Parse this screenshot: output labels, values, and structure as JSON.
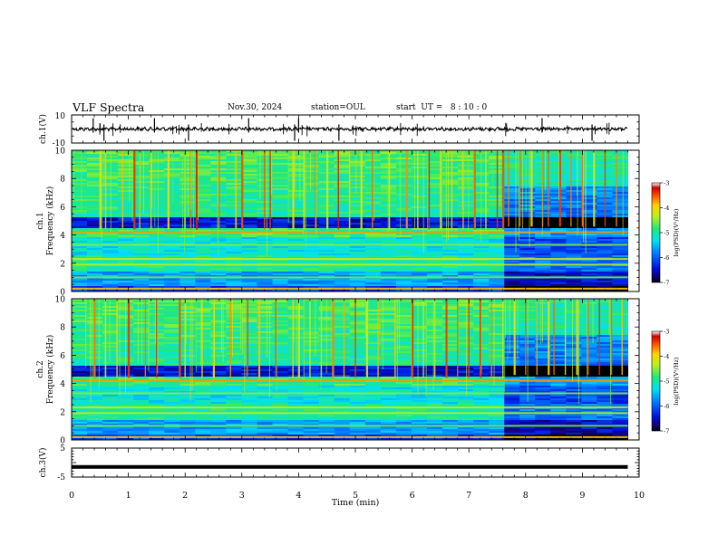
{
  "header": {
    "title": "VLF Spectra",
    "date": "Nov.30, 2024",
    "station": "station=OUL",
    "start": "start  UT =   8 : 10 : 0"
  },
  "chart_data": [
    {
      "type": "line",
      "panel": "ch1-waveform",
      "ylabel": "ch.1(V)",
      "ylim": [
        -10,
        10
      ],
      "yticks": [
        "10",
        "-10"
      ],
      "xlim": [
        0,
        10
      ],
      "baseline": 0,
      "noise_amplitude": 1,
      "spikes_min": [
        0.38,
        0.57,
        1.46,
        2.06,
        3.12,
        3.93,
        4.0,
        4.71,
        8.29,
        9.17
      ],
      "color": "#000000"
    },
    {
      "type": "heatmap",
      "panel": "ch1-spectrogram",
      "ylabel": "ch.1\nFrequency (kHz)",
      "ylim": [
        0,
        10
      ],
      "yticks": [
        "0",
        "2",
        "4",
        "6",
        "8",
        "10"
      ],
      "xlim": [
        0,
        10
      ],
      "data_end_min": 9.8,
      "colorbar": {
        "label": "log(PSD)(V²/Hz)",
        "range": [
          -7,
          -3
        ],
        "ticks": [
          "-3",
          "-4",
          "-5",
          "-6",
          "-7"
        ]
      },
      "sferic_times_min": [
        0.5,
        0.6,
        0.9,
        1.1,
        1.2,
        1.4,
        1.7,
        2.0,
        2.1,
        2.2,
        2.6,
        2.9,
        3.0,
        3.4,
        3.5,
        3.9,
        4.1,
        4.3,
        4.5,
        4.7,
        4.9,
        5.1,
        5.3,
        5.6,
        5.9,
        6.1,
        6.3,
        6.5,
        6.7,
        6.9,
        7.1,
        7.3,
        7.5,
        7.6,
        7.7,
        7.9,
        8.1,
        8.3,
        8.4,
        8.6,
        8.8,
        9.0,
        9.2,
        9.4,
        9.6
      ],
      "quiet_after_min": 7.6
    },
    {
      "type": "heatmap",
      "panel": "ch2-spectrogram",
      "ylabel": "ch.2\nFrequency (kHz)",
      "ylim": [
        0,
        10
      ],
      "yticks": [
        "0",
        "2",
        "4",
        "6",
        "8",
        "10"
      ],
      "xlim": [
        0,
        10
      ],
      "data_end_min": 9.8,
      "colorbar": {
        "label": "log(PSD)(V²/Hz)",
        "range": [
          -7,
          -3
        ],
        "ticks": [
          "-3",
          "-4",
          "-5",
          "-6",
          "-7"
        ]
      },
      "sferic_times_min": [
        0.4,
        0.6,
        0.8,
        1.0,
        1.3,
        1.5,
        1.9,
        2.0,
        2.3,
        2.5,
        2.8,
        3.1,
        3.3,
        3.6,
        3.9,
        4.0,
        4.2,
        4.4,
        4.6,
        4.8,
        5.0,
        5.2,
        5.4,
        5.7,
        6.0,
        6.2,
        6.4,
        6.6,
        6.8,
        7.0,
        7.2,
        7.4,
        7.6,
        7.8,
        8.0,
        8.2,
        8.4,
        8.5,
        8.7,
        8.9,
        9.1,
        9.3,
        9.5,
        9.7
      ],
      "quiet_after_min": 7.6
    },
    {
      "type": "line",
      "panel": "ch3-waveform",
      "ylabel": "ch.3(V)",
      "ylim": [
        -5,
        5
      ],
      "yticks": [
        "5",
        "0",
        "-5"
      ],
      "xlim": [
        0,
        10
      ],
      "constant_value": -1.5,
      "data_end_min": 9.8,
      "color": "#000000"
    }
  ],
  "xaxis": {
    "label": "Time (min)",
    "ticks": [
      "0",
      "1",
      "2",
      "3",
      "4",
      "5",
      "6",
      "7",
      "8",
      "9",
      "10"
    ]
  }
}
